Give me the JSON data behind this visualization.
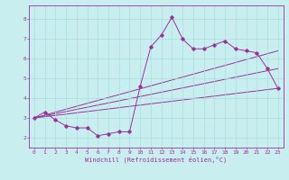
{
  "bg_color": "#c8eef0",
  "grid_color": "#aadddd",
  "line_color": "#993399",
  "xlabel": "Windchill (Refroidissement éolien,°C)",
  "xlim": [
    -0.5,
    23.5
  ],
  "ylim": [
    1.5,
    8.7
  ],
  "yticks": [
    2,
    3,
    4,
    5,
    6,
    7,
    8
  ],
  "xticks": [
    0,
    1,
    2,
    3,
    4,
    5,
    6,
    7,
    8,
    9,
    10,
    11,
    12,
    13,
    14,
    15,
    16,
    17,
    18,
    19,
    20,
    21,
    22,
    23
  ],
  "series": [
    {
      "x": [
        0,
        1,
        2,
        3,
        4,
        5,
        6,
        7,
        8,
        9,
        10,
        11,
        12,
        13,
        14,
        15,
        16,
        17,
        18,
        19,
        20,
        21,
        22,
        23
      ],
      "y": [
        3.0,
        3.3,
        2.9,
        2.6,
        2.5,
        2.5,
        2.1,
        2.2,
        2.3,
        2.3,
        4.6,
        6.6,
        7.2,
        8.1,
        7.0,
        6.5,
        6.5,
        6.7,
        6.9,
        6.5,
        6.4,
        6.3,
        5.5,
        4.5
      ]
    },
    {
      "x": [
        0,
        23
      ],
      "y": [
        3.0,
        4.5
      ]
    },
    {
      "x": [
        0,
        23
      ],
      "y": [
        3.0,
        6.4
      ]
    },
    {
      "x": [
        0,
        23
      ],
      "y": [
        3.0,
        5.5
      ]
    }
  ]
}
